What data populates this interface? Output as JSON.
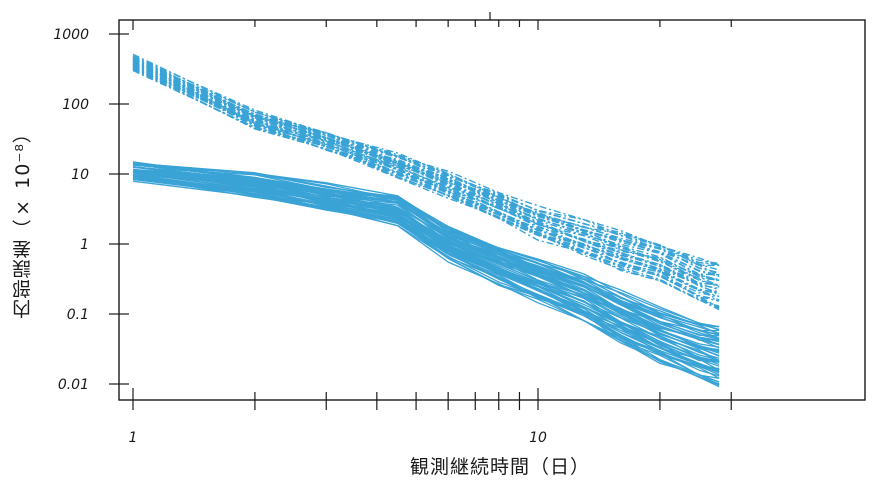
{
  "chart_data": {
    "type": "line",
    "title": "",
    "xlabel": "観測継続時間（日）",
    "ylabel": "内部誤差（× 10⁻⁸）",
    "xscale": "log",
    "yscale": "log",
    "xlim": [
      0.9,
      30
    ],
    "ylim": [
      0.006,
      1800
    ],
    "x_tick_labels": [
      "1",
      "10"
    ],
    "y_tick_labels": [
      "1000",
      "100",
      "10",
      "1",
      "0.1",
      "0.01"
    ],
    "grid": false,
    "legend": "none",
    "color": "#3aa3d6",
    "series": [
      {
        "style": "dash-dot",
        "count": 38,
        "x": [
          1,
          2,
          3,
          4.5,
          6,
          8,
          10,
          13,
          16,
          20,
          25,
          28
        ],
        "y": [
          380,
          60,
          30,
          13,
          7,
          3.5,
          2.0,
          1.2,
          0.8,
          0.55,
          0.3,
          0.25
        ],
        "spread_factor": 1.8
      },
      {
        "style": "solid",
        "count": 55,
        "x": [
          1,
          2,
          3,
          4.5,
          6,
          8,
          10,
          13,
          16,
          20,
          25,
          28
        ],
        "y": [
          11,
          7,
          4.5,
          3.0,
          1.0,
          0.5,
          0.3,
          0.17,
          0.09,
          0.05,
          0.03,
          0.025
        ],
        "spread_factor": 2.2
      }
    ]
  }
}
